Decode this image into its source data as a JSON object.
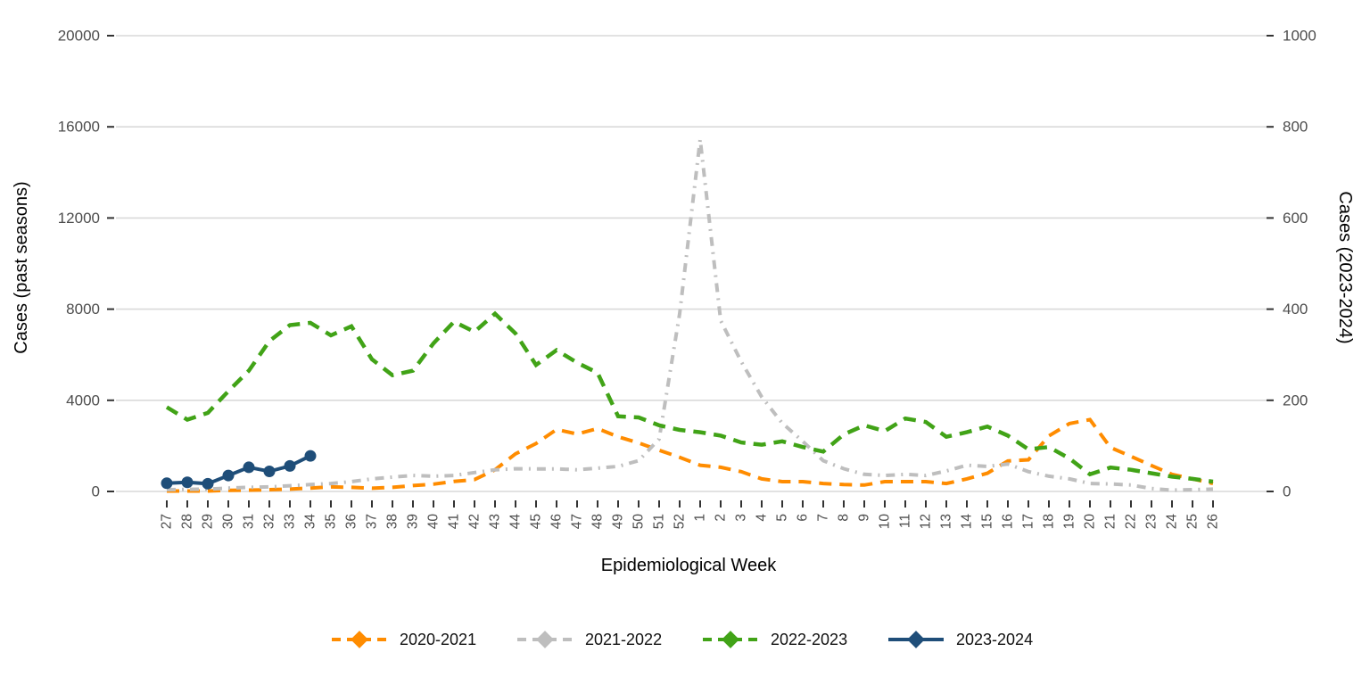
{
  "figure": {
    "left_axis": {
      "title": "Cases (past seasons)",
      "tick_labels": [
        "0",
        "4000",
        "8000",
        "12000",
        "16000",
        "20000"
      ],
      "max": 20000
    },
    "right_axis": {
      "title": "Cases (2023-2024)",
      "tick_labels": [
        "0",
        "200",
        "400",
        "600",
        "800",
        "1000"
      ],
      "max": 1000
    },
    "x_axis": {
      "title": "Epidemiological Week"
    }
  },
  "chart_data": {
    "type": "line",
    "title": "",
    "xlabel": "Epidemiological Week",
    "ylabel_left": "Cases (past seasons)",
    "ylabel_right": "Cases (2023-2024)",
    "ylim_left": [
      0,
      20000
    ],
    "ylim_right": [
      0,
      1000
    ],
    "yticks_left": [
      0,
      4000,
      8000,
      12000,
      16000,
      20000
    ],
    "yticks_right": [
      0,
      200,
      400,
      600,
      800,
      1000
    ],
    "grid": "horizontal-major-only",
    "legend_position": "bottom",
    "x": [
      "27",
      "28",
      "29",
      "30",
      "31",
      "32",
      "33",
      "34",
      "35",
      "36",
      "37",
      "38",
      "39",
      "40",
      "41",
      "42",
      "43",
      "44",
      "45",
      "46",
      "47",
      "48",
      "49",
      "50",
      "51",
      "52",
      "1",
      "2",
      "3",
      "4",
      "5",
      "6",
      "7",
      "8",
      "9",
      "10",
      "11",
      "12",
      "13",
      "14",
      "15",
      "16",
      "17",
      "18",
      "19",
      "20",
      "21",
      "22",
      "23",
      "24",
      "25",
      "26"
    ],
    "series": [
      {
        "name": "2020-2021",
        "axis": "left",
        "color": "#FF8C00",
        "style": "dashed",
        "points": false,
        "values": [
          20,
          20,
          20,
          50,
          60,
          80,
          100,
          150,
          200,
          180,
          140,
          180,
          260,
          320,
          440,
          520,
          950,
          1650,
          2100,
          2720,
          2520,
          2760,
          2400,
          2130,
          1810,
          1500,
          1150,
          1060,
          870,
          550,
          430,
          430,
          350,
          300,
          280,
          430,
          430,
          430,
          350,
          550,
          800,
          1340,
          1390,
          2440,
          2980,
          3150,
          1930,
          1540,
          1140,
          750,
          550,
          350
        ]
      },
      {
        "name": "2021-2022",
        "axis": "left",
        "color": "#BEBEBE",
        "style": "dotdash",
        "points": false,
        "values": [
          80,
          90,
          100,
          150,
          180,
          200,
          250,
          300,
          350,
          430,
          550,
          630,
          700,
          670,
          700,
          830,
          950,
          1000,
          990,
          990,
          950,
          1020,
          1100,
          1350,
          2300,
          7800,
          15450,
          7500,
          5700,
          4150,
          3000,
          2200,
          1350,
          1000,
          750,
          700,
          750,
          700,
          900,
          1150,
          1100,
          1200,
          870,
          670,
          550,
          350,
          330,
          280,
          130,
          60,
          80,
          100
        ]
      },
      {
        "name": "2022-2023",
        "axis": "left",
        "color": "#41A317",
        "style": "dashed",
        "points": false,
        "values": [
          3700,
          3150,
          3450,
          4400,
          5300,
          6600,
          7300,
          7400,
          6850,
          7250,
          5800,
          5100,
          5300,
          6500,
          7450,
          7000,
          7800,
          6930,
          5550,
          6200,
          5650,
          5200,
          3300,
          3250,
          2900,
          2700,
          2600,
          2450,
          2150,
          2050,
          2200,
          1950,
          1750,
          2500,
          2900,
          2650,
          3200,
          3050,
          2400,
          2600,
          2850,
          2450,
          1850,
          1950,
          1450,
          750,
          1050,
          950,
          800,
          650,
          550,
          430
        ]
      },
      {
        "name": "2023-2024",
        "axis": "right",
        "color": "#1F4E79",
        "style": "solid",
        "points": true,
        "values": [
          18,
          20,
          17,
          35,
          53,
          44,
          56,
          78,
          null,
          null,
          null,
          null,
          null,
          null,
          null,
          null,
          null,
          null,
          null,
          null,
          null,
          null,
          null,
          null,
          null,
          null,
          null,
          null,
          null,
          null,
          null,
          null,
          null,
          null,
          null,
          null,
          null,
          null,
          null,
          null,
          null,
          null,
          null,
          null,
          null,
          null,
          null,
          null,
          null,
          null,
          null,
          null
        ]
      }
    ]
  }
}
